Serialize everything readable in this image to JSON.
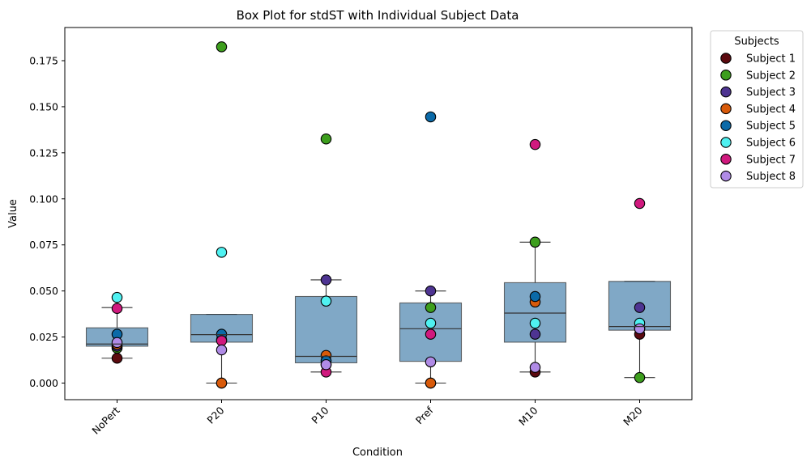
{
  "chart_data": {
    "type": "box",
    "title": "Box Plot for stdST with Individual Subject Data",
    "xlabel": "Condition",
    "ylabel": "Value",
    "ylim": [
      -0.009,
      0.193
    ],
    "yticks": [
      0.0,
      0.025,
      0.05,
      0.075,
      0.1,
      0.125,
      0.15,
      0.175
    ],
    "ytick_labels": [
      "0.000",
      "0.025",
      "0.050",
      "0.075",
      "0.100",
      "0.125",
      "0.150",
      "0.175"
    ],
    "categories": [
      "NoPert",
      "P20",
      "P10",
      "Pref",
      "M10",
      "M20"
    ],
    "box_color": "#4f86b0",
    "boxes": [
      {
        "category": "NoPert",
        "whisker_low": 0.0135,
        "q1": 0.02,
        "median": 0.0212,
        "q3": 0.03,
        "whisker_high": 0.041
      },
      {
        "category": "P20",
        "whisker_low": 0.0,
        "q1": 0.0222,
        "median": 0.0263,
        "q3": 0.0373,
        "whisker_high": 0.0373
      },
      {
        "category": "P10",
        "whisker_low": 0.006,
        "q1": 0.011,
        "median": 0.0145,
        "q3": 0.047,
        "whisker_high": 0.056
      },
      {
        "category": "Pref",
        "whisker_low": 0.0,
        "q1": 0.0118,
        "median": 0.0295,
        "q3": 0.0435,
        "whisker_high": 0.05
      },
      {
        "category": "M10",
        "whisker_low": 0.006,
        "q1": 0.0222,
        "median": 0.038,
        "q3": 0.0545,
        "whisker_high": 0.0765
      },
      {
        "category": "M20",
        "whisker_low": 0.003,
        "q1": 0.0287,
        "median": 0.0307,
        "q3": 0.0552,
        "whisker_high": 0.0552
      }
    ],
    "series": [
      {
        "name": "Subject 1",
        "color": "#5c0a0f",
        "values": [
          0.0135,
          0.0,
          0.01,
          0.0,
          0.006,
          0.0265
        ]
      },
      {
        "name": "Subject 2",
        "color": "#3d9e1d",
        "values": [
          0.019,
          0.1825,
          0.1325,
          0.041,
          0.0765,
          0.003
        ]
      },
      {
        "name": "Subject 3",
        "color": "#4e3492",
        "values": [
          0.02,
          0.0235,
          0.056,
          0.05,
          0.0265,
          0.041
        ]
      },
      {
        "name": "Subject 4",
        "color": "#d85a0a",
        "values": [
          0.021,
          0.0,
          0.015,
          0.0,
          0.044,
          0.0295
        ]
      },
      {
        "name": "Subject 5",
        "color": "#0b6aa8",
        "values": [
          0.0265,
          0.0265,
          0.012,
          0.1445,
          0.047,
          0.03
        ]
      },
      {
        "name": "Subject 6",
        "color": "#4ff1f1",
        "values": [
          0.0465,
          0.071,
          0.0445,
          0.0325,
          0.0325,
          0.0325
        ]
      },
      {
        "name": "Subject 7",
        "color": "#d0197e",
        "values": [
          0.0405,
          0.023,
          0.006,
          0.0265,
          0.1295,
          0.0975
        ]
      },
      {
        "name": "Subject 8",
        "color": "#b08be6",
        "values": [
          0.022,
          0.018,
          0.01,
          0.0115,
          0.0085,
          0.0295
        ]
      }
    ],
    "legend_title": "Subjects",
    "legend_position": "upper-right-outside",
    "grid": false
  }
}
